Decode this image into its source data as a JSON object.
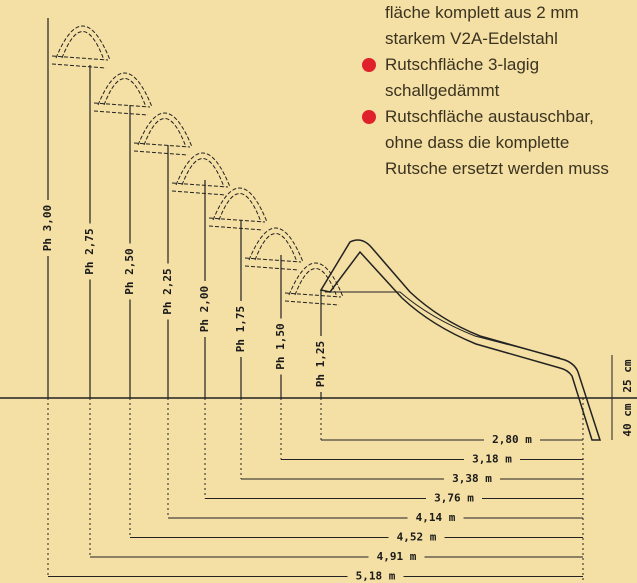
{
  "bullets": [
    {
      "lines": [
        "fläche komplett aus 2 mm",
        "starkem V2A-Edelstahl"
      ],
      "dot": false
    },
    {
      "lines": [
        "Rutschfläche 3-lagig",
        "schallgedämmt"
      ],
      "dot": true
    },
    {
      "lines": [
        "Rutschfläche austauschbar,",
        "ohne dass die komplette",
        "Rutsche ersetzt werden muss"
      ],
      "dot": true
    }
  ],
  "heights": [
    "Ph 3,00",
    "Ph 2,75",
    "Ph 2,50",
    "Ph 2,25",
    "Ph 2,00",
    "Ph 1,75",
    "Ph 1,50",
    "Ph 1,25"
  ],
  "distances": [
    "2,80 m",
    "3,18 m",
    "3,38 m",
    "3,76 m",
    "4,14 m",
    "4,52 m",
    "4,91 m",
    "5,18 m"
  ],
  "depth_labels": [
    "25 cm",
    "40 cm"
  ]
}
